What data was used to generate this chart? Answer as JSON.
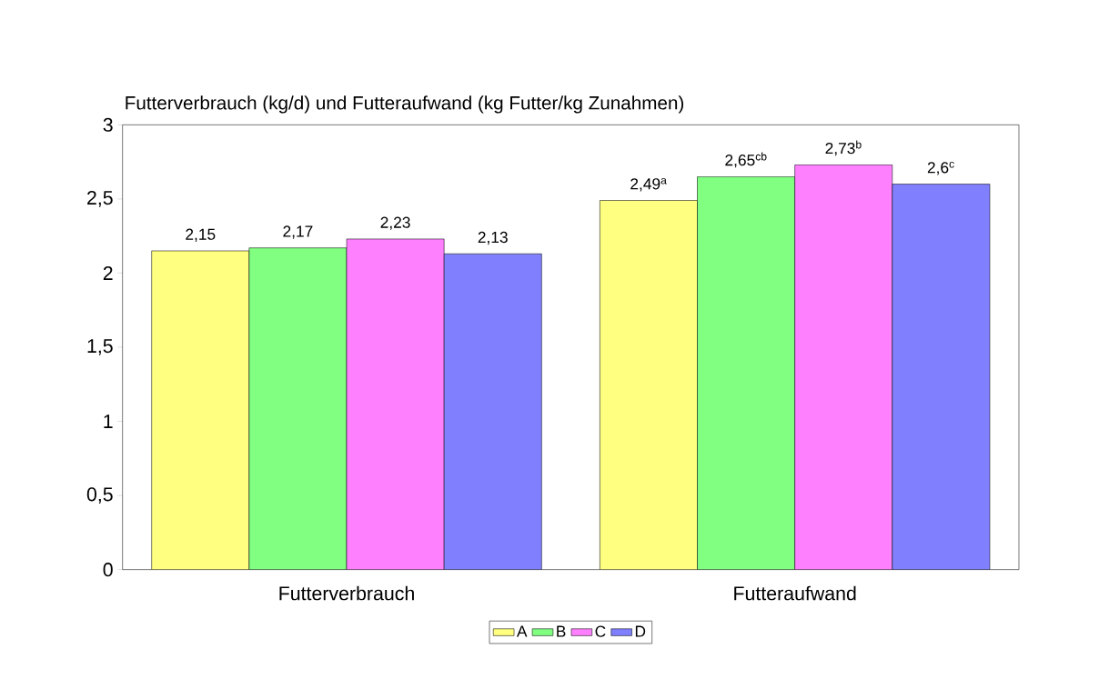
{
  "chart_data": {
    "type": "bar",
    "title": "Futterverbrauch (kg/d) und Futteraufwand (kg Futter/kg Zunahmen)",
    "categories": [
      "Futterverbrauch",
      "Futteraufwand"
    ],
    "series": [
      {
        "name": "A",
        "color": "#ffff80",
        "values": [
          2.15,
          2.49
        ],
        "value_labels": [
          "2,15",
          "2,49$^{a}$"
        ]
      },
      {
        "name": "B",
        "color": "#80ff80",
        "values": [
          2.17,
          2.65
        ],
        "value_labels": [
          "2,17",
          "2,65$^{cb}$"
        ]
      },
      {
        "name": "C",
        "color": "#ff80ff",
        "values": [
          2.23,
          2.73
        ],
        "value_labels": [
          "2,23",
          "2,73$^{b}$"
        ]
      },
      {
        "name": "D",
        "color": "#8080ff",
        "values": [
          2.13,
          2.6
        ],
        "value_labels": [
          "2,13",
          "2,6$^{c}$"
        ]
      }
    ],
    "ylim": [
      0,
      3
    ],
    "yticks": [
      0,
      {
        "value": 0.5,
        "label": "0,5"
      },
      1,
      {
        "value": 1.5,
        "label": "1,5"
      },
      2,
      {
        "value": 2.5,
        "label": "2,5"
      },
      3
    ],
    "grid": false,
    "legend": "bottom"
  }
}
